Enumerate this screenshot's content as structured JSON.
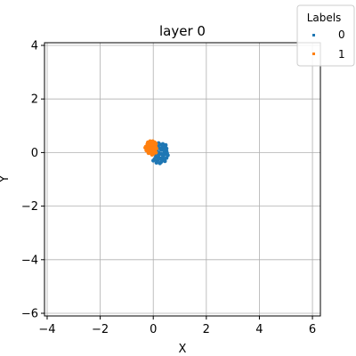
{
  "chart_data": {
    "type": "scatter",
    "title": "layer 0",
    "xlabel": "X",
    "ylabel": "Y",
    "xlim": [
      -4.1,
      6.3
    ],
    "ylim": [
      -6.1,
      4.1
    ],
    "xticks": [
      -4,
      -2,
      0,
      2,
      4,
      6
    ],
    "xtick_labels": [
      "−4",
      "−2",
      "0",
      "2",
      "4",
      "6"
    ],
    "yticks": [
      -6,
      -4,
      -2,
      0,
      2,
      4
    ],
    "ytick_labels": [
      "−6",
      "−4",
      "−2",
      "0",
      "2",
      "4"
    ],
    "grid": true,
    "legend": {
      "title": "Labels",
      "placement": "top-right"
    },
    "series": [
      {
        "name": "0",
        "color": "#1f77b4",
        "points": [
          [
            0.3,
            0.1
          ],
          [
            0.45,
            -0.05
          ],
          [
            0.2,
            -0.2
          ],
          [
            0.35,
            0.25
          ],
          [
            0.5,
            0.05
          ],
          [
            0.15,
            -0.3
          ],
          [
            0.4,
            -0.25
          ],
          [
            0.25,
            0.3
          ],
          [
            0.55,
            -0.1
          ],
          [
            0.1,
            -0.15
          ],
          [
            0.3,
            -0.35
          ],
          [
            0.45,
            0.2
          ],
          [
            0.2,
            0.0
          ],
          [
            0.38,
            -0.12
          ],
          [
            0.05,
            -0.25
          ],
          [
            0.28,
            0.15
          ],
          [
            0.5,
            -0.2
          ],
          [
            0.18,
            0.22
          ],
          [
            0.42,
            0.0
          ],
          [
            0.33,
            -0.3
          ],
          [
            0.08,
            0.05
          ],
          [
            0.48,
            0.12
          ],
          [
            0.22,
            -0.08
          ],
          [
            0.36,
            0.32
          ],
          [
            0.12,
            -0.38
          ],
          [
            0.52,
            -0.02
          ],
          [
            0.26,
            -0.22
          ],
          [
            0.4,
            0.18
          ],
          [
            0.15,
            0.12
          ],
          [
            0.3,
            -0.05
          ],
          [
            0.0,
            -0.3
          ],
          [
            0.44,
            -0.32
          ],
          [
            0.2,
            0.35
          ],
          [
            0.35,
            -0.18
          ],
          [
            0.47,
            0.28
          ],
          [
            0.1,
            -0.05
          ],
          [
            0.25,
            -0.4
          ],
          [
            0.39,
            0.08
          ],
          [
            0.17,
            -0.28
          ],
          [
            0.5,
            0.15
          ]
        ]
      },
      {
        "name": "1",
        "color": "#ff7f0e",
        "points": [
          [
            -0.1,
            0.2
          ],
          [
            0.0,
            0.35
          ],
          [
            -0.2,
            0.05
          ],
          [
            0.05,
            0.1
          ],
          [
            -0.05,
            0.4
          ],
          [
            -0.15,
            0.25
          ],
          [
            0.1,
            0.0
          ],
          [
            -0.25,
            0.15
          ],
          [
            0.0,
            -0.05
          ],
          [
            -0.1,
            0.3
          ],
          [
            0.08,
            0.25
          ],
          [
            -0.18,
            -0.02
          ],
          [
            -0.02,
            0.18
          ],
          [
            -0.22,
            0.32
          ],
          [
            0.05,
            0.38
          ],
          [
            -0.08,
            0.08
          ],
          [
            -0.12,
            0.42
          ],
          [
            0.12,
            0.15
          ],
          [
            -0.28,
            0.22
          ],
          [
            -0.05,
            -0.08
          ],
          [
            0.02,
            0.28
          ],
          [
            -0.16,
            0.12
          ],
          [
            -0.04,
            0.02
          ],
          [
            0.1,
            0.33
          ],
          [
            -0.2,
            0.38
          ],
          [
            -0.1,
            -0.02
          ],
          [
            0.06,
            0.05
          ],
          [
            -0.26,
            0.08
          ],
          [
            -0.14,
            0.2
          ],
          [
            0.0,
            0.15
          ],
          [
            -0.06,
            0.3
          ],
          [
            -0.3,
            0.18
          ],
          [
            0.09,
            0.2
          ],
          [
            -0.18,
            0.3
          ],
          [
            -0.02,
            0.42
          ]
        ]
      }
    ]
  }
}
